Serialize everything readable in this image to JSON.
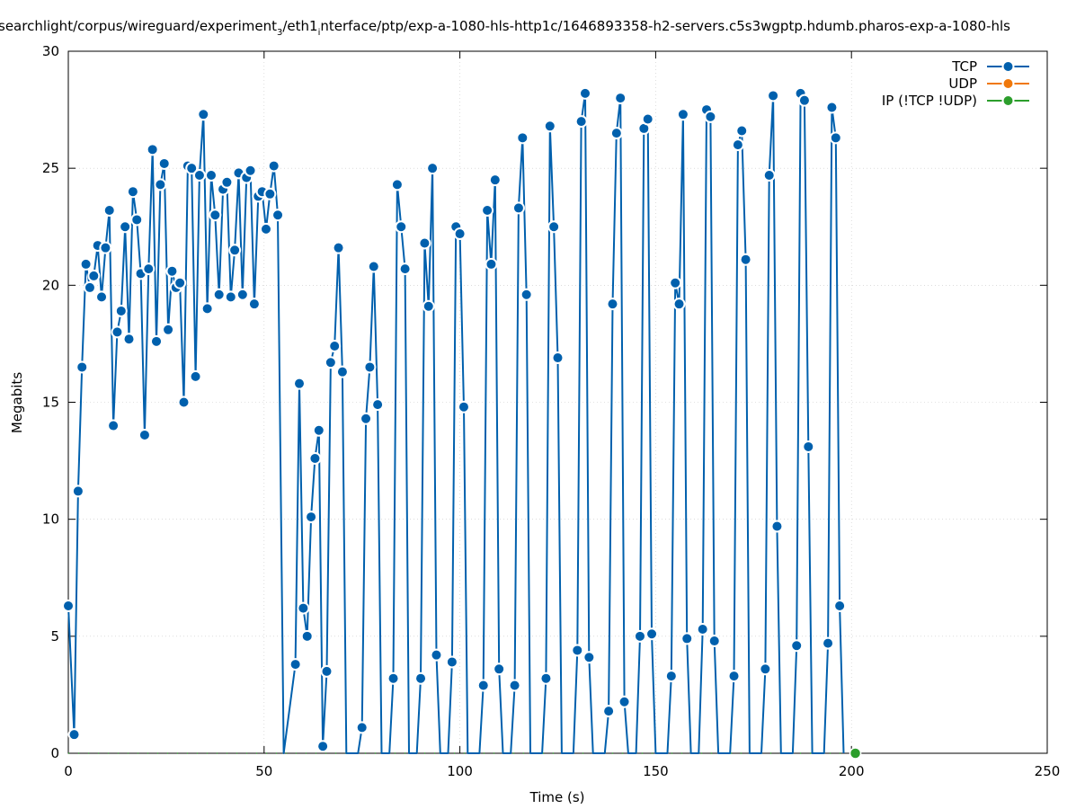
{
  "chart_data": {
    "type": "line",
    "title_main": "searchlight/corpus/wireguard/experiment",
    "title_sub1": "3",
    "title_mid": "/eth1",
    "title_sub2": "i",
    "title_tail": "nterface/ptp/exp-a-1080-hls-http1c/1646893358-h2-servers.c5s3wgptp.hdumb.pharos-exp-a-1080-hls",
    "xlabel": "Time (s)",
    "ylabel": "Megabits",
    "xlim": [
      0,
      250
    ],
    "ylim": [
      0,
      30
    ],
    "x_ticks": [
      "0",
      "50",
      "100",
      "150",
      "200",
      "250"
    ],
    "y_ticks": [
      "0",
      "5",
      "10",
      "15",
      "20",
      "25",
      "30"
    ],
    "grid": true,
    "legend_position": "top-right",
    "series": [
      {
        "name": "TCP",
        "color": "#0060ad",
        "points": [
          [
            0,
            6.3
          ],
          [
            1.5,
            0.8
          ],
          [
            2.5,
            11.2
          ],
          [
            3.5,
            16.5
          ],
          [
            4.5,
            20.9
          ],
          [
            5.5,
            19.9
          ],
          [
            6.5,
            20.4
          ],
          [
            7.5,
            21.7
          ],
          [
            8.5,
            19.5
          ],
          [
            9.5,
            21.6
          ],
          [
            10.5,
            23.2
          ],
          [
            11.5,
            14.0
          ],
          [
            12.5,
            18.0
          ],
          [
            13.5,
            18.9
          ],
          [
            14.5,
            22.5
          ],
          [
            15.5,
            17.7
          ],
          [
            16.5,
            24.0
          ],
          [
            17.5,
            22.8
          ],
          [
            18.5,
            20.5
          ],
          [
            19.5,
            13.6
          ],
          [
            20.5,
            20.7
          ],
          [
            21.5,
            25.8
          ],
          [
            22.5,
            17.6
          ],
          [
            23.5,
            24.3
          ],
          [
            24.5,
            25.2
          ],
          [
            25.5,
            18.1
          ],
          [
            26.5,
            20.6
          ],
          [
            27.5,
            19.9
          ],
          [
            28.5,
            20.1
          ],
          [
            29.5,
            15.0
          ],
          [
            30.5,
            25.1
          ],
          [
            31.5,
            25.0
          ],
          [
            32.5,
            16.1
          ],
          [
            33.5,
            24.7
          ],
          [
            34.5,
            27.3
          ],
          [
            35.5,
            19.0
          ],
          [
            36.5,
            24.7
          ],
          [
            37.5,
            23.0
          ],
          [
            38.5,
            19.6
          ],
          [
            39.5,
            24.1
          ],
          [
            40.5,
            24.4
          ],
          [
            41.5,
            19.5
          ],
          [
            42.5,
            21.5
          ],
          [
            43.5,
            24.8
          ],
          [
            44.5,
            19.6
          ],
          [
            45.5,
            24.6
          ],
          [
            46.5,
            24.9
          ],
          [
            47.5,
            19.2
          ],
          [
            48.5,
            23.8
          ],
          [
            49.5,
            24.0
          ],
          [
            50.5,
            22.4
          ],
          [
            51.5,
            23.9
          ],
          [
            52.5,
            25.1
          ],
          [
            53.5,
            23.0
          ],
          [
            55,
            0
          ],
          [
            58,
            3.8
          ],
          [
            59,
            15.8
          ],
          [
            60,
            6.2
          ],
          [
            61,
            5.0
          ],
          [
            62,
            10.1
          ],
          [
            63,
            12.6
          ],
          [
            64,
            13.8
          ],
          [
            65,
            0.3
          ],
          [
            66,
            3.5
          ],
          [
            67,
            16.7
          ],
          [
            68,
            17.4
          ],
          [
            69,
            21.6
          ],
          [
            70,
            16.3
          ],
          [
            71,
            0
          ],
          [
            74,
            0
          ],
          [
            75,
            1.1
          ],
          [
            76,
            14.3
          ],
          [
            77,
            16.5
          ],
          [
            78,
            20.8
          ],
          [
            79,
            14.9
          ],
          [
            80,
            0
          ],
          [
            82,
            0
          ],
          [
            83,
            3.2
          ],
          [
            84,
            24.3
          ],
          [
            85,
            22.5
          ],
          [
            86,
            20.7
          ],
          [
            87,
            0
          ],
          [
            89,
            0
          ],
          [
            90,
            3.2
          ],
          [
            91,
            21.8
          ],
          [
            92,
            19.1
          ],
          [
            93,
            25.0
          ],
          [
            94,
            4.2
          ],
          [
            95,
            0
          ],
          [
            97,
            0
          ],
          [
            98,
            3.9
          ],
          [
            99,
            22.5
          ],
          [
            100,
            22.2
          ],
          [
            101,
            14.8
          ],
          [
            102,
            0
          ],
          [
            105,
            0
          ],
          [
            106,
            2.9
          ],
          [
            107,
            23.2
          ],
          [
            108,
            20.9
          ],
          [
            109,
            24.5
          ],
          [
            110,
            3.6
          ],
          [
            111,
            0
          ],
          [
            113,
            0
          ],
          [
            114,
            2.9
          ],
          [
            115,
            23.3
          ],
          [
            116,
            26.3
          ],
          [
            117,
            19.6
          ],
          [
            118,
            0
          ],
          [
            121,
            0
          ],
          [
            122,
            3.2
          ],
          [
            123,
            26.8
          ],
          [
            124,
            22.5
          ],
          [
            125,
            16.9
          ],
          [
            126,
            0
          ],
          [
            129,
            0
          ],
          [
            130,
            4.4
          ],
          [
            131,
            27.0
          ],
          [
            132,
            28.2
          ],
          [
            133,
            4.1
          ],
          [
            134,
            0
          ],
          [
            137,
            0
          ],
          [
            138,
            1.8
          ],
          [
            139,
            19.2
          ],
          [
            140,
            26.5
          ],
          [
            141,
            28.0
          ],
          [
            142,
            2.2
          ],
          [
            143,
            0
          ],
          [
            145,
            0
          ],
          [
            146,
            5.0
          ],
          [
            147,
            26.7
          ],
          [
            148,
            27.1
          ],
          [
            149,
            5.1
          ],
          [
            150,
            0
          ],
          [
            153,
            0
          ],
          [
            154,
            3.3
          ],
          [
            155,
            20.1
          ],
          [
            156,
            19.2
          ],
          [
            157,
            27.3
          ],
          [
            158,
            4.9
          ],
          [
            159,
            0
          ],
          [
            161,
            0
          ],
          [
            162,
            5.3
          ],
          [
            163,
            27.5
          ],
          [
            164,
            27.2
          ],
          [
            165,
            4.8
          ],
          [
            166,
            0
          ],
          [
            169,
            0
          ],
          [
            170,
            3.3
          ],
          [
            171,
            26.0
          ],
          [
            172,
            26.6
          ],
          [
            173,
            21.1
          ],
          [
            174,
            0
          ],
          [
            177,
            0
          ],
          [
            178,
            3.6
          ],
          [
            179,
            24.7
          ],
          [
            180,
            28.1
          ],
          [
            181,
            9.7
          ],
          [
            182,
            0
          ],
          [
            185,
            0
          ],
          [
            186,
            4.6
          ],
          [
            187,
            28.2
          ],
          [
            188,
            27.9
          ],
          [
            189,
            13.1
          ],
          [
            190,
            0
          ],
          [
            193,
            0
          ],
          [
            194,
            4.7
          ],
          [
            195,
            27.6
          ],
          [
            196,
            26.3
          ],
          [
            197,
            6.3
          ],
          [
            198,
            0
          ]
        ]
      },
      {
        "name": "UDP",
        "color": "#f0780a",
        "points": []
      },
      {
        "name": "IP (!TCP  !UDP)",
        "color": "#2c9e2c",
        "points": [
          [
            201,
            0
          ]
        ]
      }
    ]
  }
}
